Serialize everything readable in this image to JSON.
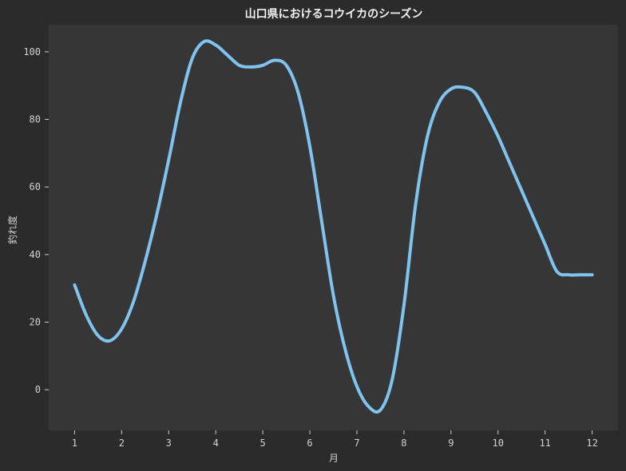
{
  "chart_data": {
    "type": "line",
    "title": "山口県におけるコウイカのシーズン",
    "xlabel": "月",
    "ylabel": "釣れ度",
    "x_ticks": [
      "1",
      "2",
      "3",
      "4",
      "5",
      "6",
      "7",
      "8",
      "9",
      "10",
      "11",
      "12"
    ],
    "y_ticks": [
      "0",
      "20",
      "40",
      "60",
      "80",
      "100"
    ],
    "xlim": [
      0.45,
      12.55
    ],
    "ylim": [
      -12,
      108
    ],
    "grid": false,
    "series": [
      {
        "x": [
          1,
          1.25,
          1.5,
          1.75,
          2,
          2.25,
          2.5,
          2.75,
          3,
          3.25,
          3.5,
          3.75,
          4,
          4.25,
          4.5,
          4.75,
          5,
          5.25,
          5.5,
          5.75,
          6,
          6.25,
          6.5,
          6.75,
          7,
          7.25,
          7.5,
          7.75,
          8,
          8.25,
          8.5,
          8.75,
          9,
          9.25,
          9.5,
          9.75,
          10,
          10.25,
          10.5,
          10.75,
          11,
          11.25,
          11.5,
          11.75,
          12
        ],
        "y": [
          31,
          22,
          16,
          14.5,
          18,
          26,
          38,
          52,
          68,
          85,
          98,
          103,
          102,
          99,
          96,
          95.5,
          96,
          97.5,
          96,
          88,
          72,
          50,
          28,
          12,
          1,
          -5,
          -6,
          3,
          25,
          55,
          75,
          85,
          89,
          89.5,
          88,
          82,
          75,
          67,
          59,
          51,
          43,
          35,
          34,
          34,
          34
        ],
        "color": "#7ec4f0"
      }
    ],
    "colors": {
      "background": "#2b2b2b",
      "plot_area": "#363636",
      "line": "#7ec4f0",
      "text": "#d0d0d0"
    }
  }
}
